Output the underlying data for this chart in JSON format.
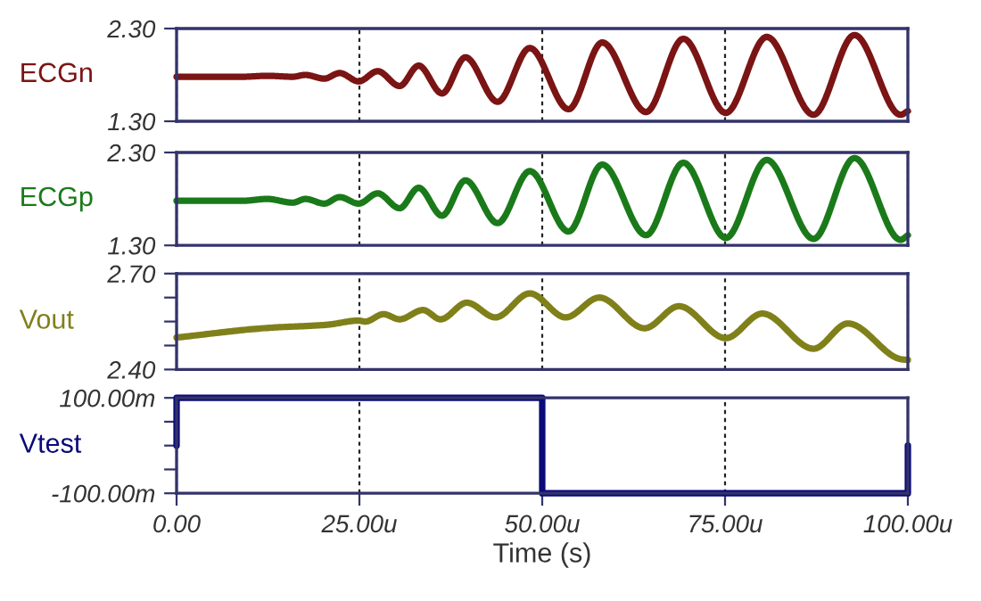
{
  "chart_data": [
    {
      "type": "line",
      "ylabel": "ECGn",
      "xlim": [
        0,
        100
      ],
      "xticks": [
        0,
        25,
        50,
        75,
        100
      ],
      "ylim": [
        1.3,
        2.3
      ],
      "yticks": [
        {
          "value": 1.3,
          "label": "1.30"
        },
        {
          "value": 2.3,
          "label": "2.30"
        }
      ],
      "grid": "x",
      "line_style": "solid",
      "tick_labels": "y",
      "series": [
        {
          "color": "#7b1414",
          "x": [
            0,
            9,
            12.4,
            15.9,
            17.6,
            20.2,
            22.3,
            24.9,
            27.5,
            30.5,
            33.1,
            36.3,
            39.5,
            43.9,
            48.3,
            53.6,
            58.2,
            64.2,
            69.3,
            75.1,
            80.7,
            87.1,
            92.7,
            99.0,
            100
          ],
          "values": [
            1.78,
            1.78,
            1.79,
            1.78,
            1.8,
            1.76,
            1.82,
            1.73,
            1.84,
            1.68,
            1.9,
            1.6,
            1.99,
            1.51,
            2.09,
            1.43,
            2.15,
            1.4,
            2.19,
            1.39,
            2.21,
            1.37,
            2.23,
            1.37,
            1.41
          ]
        }
      ]
    },
    {
      "type": "line",
      "ylabel": "ECGp",
      "xlim": [
        0,
        100
      ],
      "xticks": [
        0,
        25,
        50,
        75,
        100
      ],
      "ylim": [
        1.3,
        2.3
      ],
      "yticks": [
        {
          "value": 1.3,
          "label": "1.30"
        },
        {
          "value": 2.3,
          "label": "2.30"
        }
      ],
      "grid": "x",
      "line_style": "solid",
      "tick_labels": "y",
      "series": [
        {
          "color": "#1a7a1a",
          "x": [
            0,
            9,
            12.4,
            15.9,
            17.6,
            20.2,
            22.3,
            24.9,
            27.5,
            30.5,
            33.1,
            36.3,
            39.5,
            43.9,
            48.3,
            53.6,
            58.2,
            64.2,
            69.3,
            75.1,
            80.7,
            87.1,
            92.7,
            99.0,
            100
          ],
          "values": [
            1.78,
            1.78,
            1.8,
            1.76,
            1.8,
            1.75,
            1.82,
            1.75,
            1.86,
            1.7,
            1.92,
            1.62,
            2.0,
            1.54,
            2.1,
            1.45,
            2.17,
            1.41,
            2.19,
            1.38,
            2.22,
            1.37,
            2.24,
            1.36,
            1.41
          ]
        }
      ]
    },
    {
      "type": "line",
      "ylabel": "Vout",
      "xlim": [
        0,
        100
      ],
      "xticks": [
        0,
        25,
        50,
        75,
        100
      ],
      "ylim": [
        2.4,
        2.7
      ],
      "yticks": [
        {
          "value": 2.4,
          "label": "2.40"
        },
        {
          "value": 2.475,
          "label": null
        },
        {
          "value": 2.55,
          "label": null
        },
        {
          "value": 2.625,
          "label": null
        },
        {
          "value": 2.7,
          "label": "2.70"
        }
      ],
      "grid": "x",
      "line_style": "solid",
      "tick_labels": "y",
      "series": [
        {
          "color": "#80801a",
          "x": [
            0,
            12.4,
            20.6,
            24.9,
            25.8,
            28.3,
            30.5,
            33.7,
            36.1,
            39.7,
            43.6,
            48.3,
            53.2,
            57.8,
            64.0,
            68.7,
            75.1,
            80.1,
            87.1,
            91.8,
            99.1,
            100
          ],
          "values": [
            2.5,
            2.53,
            2.54,
            2.553,
            2.55,
            2.573,
            2.557,
            2.586,
            2.557,
            2.609,
            2.563,
            2.638,
            2.563,
            2.625,
            2.529,
            2.598,
            2.498,
            2.575,
            2.465,
            2.544,
            2.432,
            2.43
          ]
        }
      ]
    },
    {
      "type": "line",
      "ylabel": "Vtest",
      "xlabel": "Time (s)",
      "xlim": [
        0,
        100
      ],
      "xticks": [
        {
          "value": 0,
          "label": "0.00"
        },
        {
          "value": 25,
          "label": "25.00u"
        },
        {
          "value": 50,
          "label": "50.00u"
        },
        {
          "value": 75,
          "label": "75.00u"
        },
        {
          "value": 100,
          "label": "100.00u"
        }
      ],
      "ylim": [
        -100,
        100
      ],
      "yticks": [
        {
          "value": -100,
          "label": "-100.00m"
        },
        {
          "value": -50,
          "label": null
        },
        {
          "value": 0,
          "label": null
        },
        {
          "value": 50,
          "label": null
        },
        {
          "value": 100,
          "label": "100.00m"
        }
      ],
      "grid": "x",
      "line_style": "solid",
      "series": [
        {
          "color": "#0a0a78",
          "x": [
            0,
            0,
            50,
            50,
            100,
            100
          ],
          "values": [
            0,
            100,
            100,
            -100,
            -100,
            0
          ]
        }
      ]
    }
  ]
}
